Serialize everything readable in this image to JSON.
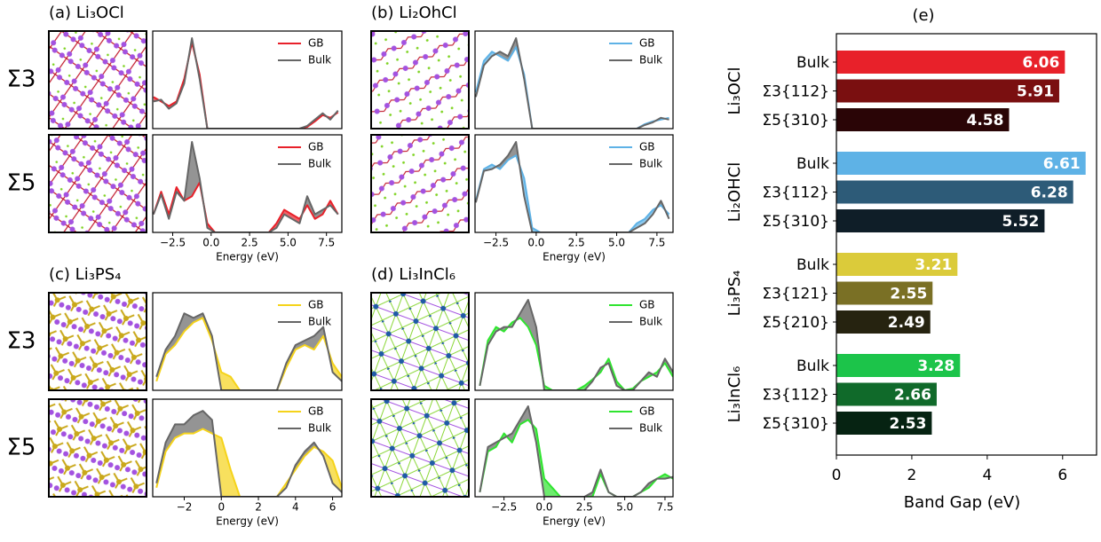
{
  "chart_data": [
    {
      "type": "line",
      "title": "(a) Li₃OCl",
      "row_label": "Σ3",
      "legend": "upper right",
      "xlim": [
        -3.8,
        8.5
      ],
      "ylim": [
        0,
        1
      ],
      "x": [
        -3.75,
        -3.25,
        -2.75,
        -2.25,
        -1.75,
        -1.25,
        -0.75,
        -0.25,
        0.25,
        0.75,
        1.25,
        1.75,
        2.25,
        2.75,
        3.25,
        3.75,
        4.25,
        4.75,
        5.25,
        5.75,
        6.25,
        6.75,
        7.25,
        7.75,
        8.25
      ],
      "series": [
        {
          "name": "GB",
          "color": "#e8212a",
          "values": [
            0.35,
            0.3,
            0.25,
            0.3,
            0.55,
            0.95,
            0.6,
            0,
            0,
            0,
            0,
            0,
            0,
            0,
            0,
            0,
            0,
            0,
            0,
            0,
            0.02,
            0.08,
            0.15,
            0.12,
            0.18
          ]
        },
        {
          "name": "Bulk",
          "color": "#666666",
          "values": [
            0.3,
            0.32,
            0.22,
            0.28,
            0.5,
            1.0,
            0.55,
            0,
            0,
            0,
            0,
            0,
            0,
            0,
            0,
            0,
            0,
            0,
            0,
            0,
            0.03,
            0.1,
            0.17,
            0.1,
            0.2
          ]
        }
      ]
    },
    {
      "type": "line",
      "row_label": "Σ5",
      "legend": "upper right",
      "xlabel": "Energy (eV)",
      "xlim": [
        -3.8,
        8.5
      ],
      "ylim": [
        0,
        1
      ],
      "xticks": [
        {
          "value": -2.5,
          "label": "−2.5"
        },
        {
          "value": 0,
          "label": "0.0"
        },
        2.5,
        {
          "value": 5,
          "label": "5.0"
        },
        7.5
      ],
      "x": [
        -3.75,
        -3.25,
        -2.75,
        -2.25,
        -1.75,
        -1.25,
        -0.75,
        -0.25,
        0.25,
        0.75,
        1.25,
        1.75,
        2.25,
        2.75,
        3.25,
        3.75,
        4.25,
        4.75,
        5.25,
        5.75,
        6.25,
        6.75,
        7.25,
        7.75,
        8.25
      ],
      "series": [
        {
          "name": "GB",
          "color": "#e8212a",
          "values": [
            0.2,
            0.45,
            0.2,
            0.5,
            0.35,
            0.4,
            0.55,
            0.1,
            0,
            0,
            0,
            0,
            0,
            0,
            0,
            0,
            0.1,
            0.25,
            0.2,
            0.15,
            0.3,
            0.15,
            0.2,
            0.35,
            0.2
          ]
        },
        {
          "name": "Bulk",
          "color": "#666666",
          "values": [
            0.2,
            0.42,
            0.15,
            0.45,
            0.35,
            1.0,
            0.6,
            0.05,
            0,
            0,
            0,
            0,
            0,
            0,
            0,
            0,
            0.05,
            0.2,
            0.15,
            0.1,
            0.4,
            0.2,
            0.25,
            0.3,
            0.2
          ]
        }
      ]
    },
    {
      "type": "line",
      "title": "(b) Li₂OhCl",
      "legend": "upper right",
      "xlim": [
        -3.8,
        8.5
      ],
      "ylim": [
        0,
        1
      ],
      "x": [
        -3.75,
        -3.25,
        -2.75,
        -2.25,
        -1.75,
        -1.25,
        -0.75,
        -0.25,
        0.25,
        0.75,
        1.25,
        1.75,
        2.25,
        2.75,
        3.25,
        3.75,
        4.25,
        4.75,
        5.25,
        5.75,
        6.25,
        6.75,
        7.25,
        7.75,
        8.25
      ],
      "series": [
        {
          "name": "GB",
          "color": "#5eb2e6",
          "values": [
            0.4,
            0.75,
            0.85,
            0.8,
            0.75,
            0.9,
            0.6,
            0,
            0,
            0,
            0,
            0,
            0,
            0,
            0,
            0,
            0,
            0,
            0,
            0,
            0,
            0.05,
            0.08,
            0.1,
            0.12
          ]
        },
        {
          "name": "Bulk",
          "color": "#666666",
          "values": [
            0.35,
            0.7,
            0.8,
            0.85,
            0.8,
            1.0,
            0.55,
            0,
            0,
            0,
            0,
            0,
            0,
            0,
            0,
            0,
            0,
            0,
            0,
            0,
            0,
            0.04,
            0.07,
            0.12,
            0.1
          ]
        }
      ]
    },
    {
      "type": "line",
      "legend": "upper right",
      "xlabel": "Energy (eV)",
      "xlim": [
        -3.8,
        8.5
      ],
      "ylim": [
        0,
        1
      ],
      "xticks": [
        {
          "value": -2.5,
          "label": "−2.5"
        },
        {
          "value": 0,
          "label": "0.0"
        },
        2.5,
        {
          "value": 5,
          "label": "5.0"
        },
        7.5
      ],
      "x": [
        -3.75,
        -3.25,
        -2.75,
        -2.25,
        -1.75,
        -1.25,
        -0.75,
        -0.25,
        0.25,
        0.75,
        1.25,
        1.75,
        2.25,
        2.75,
        3.25,
        3.75,
        4.25,
        4.75,
        5.25,
        5.75,
        6.25,
        6.75,
        7.25,
        7.75,
        8.25
      ],
      "series": [
        {
          "name": "GB",
          "color": "#5eb2e6",
          "values": [
            0.35,
            0.7,
            0.75,
            0.7,
            0.8,
            0.85,
            0.6,
            0.05,
            0,
            0,
            0,
            0,
            0,
            0,
            0,
            0,
            0,
            0,
            0,
            0,
            0.1,
            0.15,
            0.25,
            0.3,
            0.2
          ]
        },
        {
          "name": "Bulk",
          "color": "#666666",
          "values": [
            0.33,
            0.68,
            0.7,
            0.75,
            0.85,
            1.0,
            0.4,
            0,
            0,
            0,
            0,
            0,
            0,
            0,
            0,
            0,
            0,
            0,
            0,
            0,
            0.05,
            0.1,
            0.2,
            0.35,
            0.15
          ]
        }
      ]
    },
    {
      "type": "line",
      "title": "(c) Li₃PS₄",
      "row_label": "Σ3",
      "legend": "upper right",
      "xlim": [
        -3.7,
        6.5
      ],
      "ylim": [
        0,
        1
      ],
      "x": [
        -3.5,
        -3,
        -2.5,
        -2,
        -1.5,
        -1,
        -0.5,
        0,
        0.5,
        1,
        1.5,
        2,
        2.5,
        3,
        3.5,
        4,
        4.5,
        5,
        5.5,
        6,
        6.5
      ],
      "series": [
        {
          "name": "GB",
          "color": "#f5d31a",
          "values": [
            0.1,
            0.4,
            0.5,
            0.65,
            0.75,
            0.8,
            0.55,
            0.2,
            0.15,
            0,
            0,
            0,
            0,
            0,
            0.25,
            0.45,
            0.5,
            0.45,
            0.6,
            0.3,
            0.15
          ]
        },
        {
          "name": "Bulk",
          "color": "#666666",
          "values": [
            0.15,
            0.45,
            0.6,
            0.85,
            0.8,
            0.85,
            0.6,
            0,
            0,
            0,
            0,
            0,
            0,
            0,
            0.3,
            0.5,
            0.55,
            0.6,
            0.7,
            0.2,
            0.1
          ]
        }
      ]
    },
    {
      "type": "line",
      "row_label": "Σ5",
      "legend": "upper right",
      "xlabel": "Energy (eV)",
      "xlim": [
        -3.7,
        6.5
      ],
      "ylim": [
        0,
        1
      ],
      "xticks": [
        {
          "value": -2,
          "label": "−2"
        },
        0,
        2,
        4,
        6
      ],
      "x": [
        -3.5,
        -3,
        -2.5,
        -2,
        -1.5,
        -1,
        -0.5,
        0,
        0.5,
        1,
        1.5,
        2,
        2.5,
        3,
        3.5,
        4,
        4.5,
        5,
        5.5,
        6,
        6.5
      ],
      "series": [
        {
          "name": "GB",
          "color": "#f5d31a",
          "values": [
            0.1,
            0.5,
            0.65,
            0.7,
            0.7,
            0.75,
            0.7,
            0.65,
            0.3,
            0,
            0,
            0,
            0,
            0,
            0.15,
            0.3,
            0.45,
            0.55,
            0.5,
            0.4,
            0.1
          ]
        },
        {
          "name": "Bulk",
          "color": "#666666",
          "values": [
            0.15,
            0.6,
            0.8,
            0.8,
            0.9,
            0.95,
            0.85,
            0,
            0,
            0,
            0,
            0,
            0,
            0,
            0.1,
            0.35,
            0.5,
            0.6,
            0.45,
            0.15,
            0.05
          ]
        }
      ]
    },
    {
      "type": "line",
      "title": "(d) Li₃InCl₆",
      "legend": "upper right",
      "xlim": [
        -4.3,
        8
      ],
      "ylim": [
        0,
        1
      ],
      "x": [
        -4,
        -3.5,
        -3,
        -2.5,
        -2,
        -1.5,
        -1,
        -0.5,
        0,
        0.5,
        1,
        1.5,
        2,
        2.5,
        3,
        3.5,
        4,
        4.5,
        5,
        5.5,
        6,
        6.5,
        7,
        7.5,
        8
      ],
      "series": [
        {
          "name": "GB",
          "color": "#2fe42f",
          "values": [
            0.05,
            0.55,
            0.7,
            0.65,
            0.75,
            0.8,
            0.7,
            0.5,
            0.05,
            0,
            0,
            0,
            0,
            0.05,
            0.12,
            0.2,
            0.35,
            0.1,
            0,
            0.02,
            0.1,
            0.15,
            0.2,
            0.3,
            0.15
          ]
        },
        {
          "name": "Bulk",
          "color": "#666666",
          "values": [
            0.05,
            0.5,
            0.65,
            0.7,
            0.7,
            0.85,
            1.0,
            0.7,
            0,
            0,
            0,
            0,
            0,
            0,
            0.1,
            0.25,
            0.3,
            0.05,
            0,
            0,
            0.1,
            0.2,
            0.15,
            0.35,
            0.2
          ]
        }
      ]
    },
    {
      "type": "line",
      "legend": "upper right",
      "xlabel": "Energy (eV)",
      "xlim": [
        -4.3,
        8
      ],
      "ylim": [
        0,
        1
      ],
      "xticks": [
        {
          "value": -2.5,
          "label": "−2.5"
        },
        {
          "value": 0,
          "label": "0.0"
        },
        2.5,
        {
          "value": 5,
          "label": "5.0"
        },
        7.5
      ],
      "x": [
        -4,
        -3.5,
        -3,
        -2.5,
        -2,
        -1.5,
        -1,
        -0.5,
        0,
        0.5,
        1,
        1.5,
        2,
        2.5,
        3,
        3.5,
        4,
        4.5,
        5,
        5.5,
        6,
        6.5,
        7,
        7.5,
        8
      ],
      "series": [
        {
          "name": "GB",
          "color": "#2fe42f",
          "values": [
            0.05,
            0.5,
            0.55,
            0.7,
            0.6,
            0.8,
            0.85,
            0.75,
            0.2,
            0.1,
            0,
            0,
            0,
            0,
            0,
            0.25,
            0.05,
            0,
            0,
            0,
            0.05,
            0.1,
            0.2,
            0.25,
            0.2
          ]
        },
        {
          "name": "Bulk",
          "color": "#666666",
          "values": [
            0.05,
            0.55,
            0.6,
            0.65,
            0.7,
            0.85,
            1.0,
            0.6,
            0,
            0,
            0,
            0,
            0,
            0,
            0.05,
            0.3,
            0.05,
            0,
            0,
            0,
            0.05,
            0.15,
            0.2,
            0.2,
            0.22
          ]
        }
      ]
    },
    {
      "type": "barh",
      "title": "(e)",
      "xlabel": "Band Gap (eV)",
      "xlim": [
        0,
        6.9
      ],
      "xticks": [
        0,
        2,
        4,
        6
      ],
      "series": [
        {
          "name": "Li₃OCl",
          "categories": [
            "Bulk",
            "Σ3{112}",
            "Σ5{310}"
          ],
          "values": [
            6.06,
            5.91,
            4.58
          ],
          "colors": [
            "#e8212a",
            "#7a0f10",
            "#2a0506"
          ]
        },
        {
          "name": "Li₂OHCl",
          "categories": [
            "Bulk",
            "Σ3{112}",
            "Σ5{310}"
          ],
          "values": [
            6.61,
            6.28,
            5.52
          ],
          "colors": [
            "#5eb2e6",
            "#2d5b78",
            "#0f1e28"
          ]
        },
        {
          "name": "Li₃PS₄",
          "categories": [
            "Bulk",
            "Σ3{121}",
            "Σ5{210}"
          ],
          "values": [
            3.21,
            2.55,
            2.49
          ],
          "colors": [
            "#dbcb3a",
            "#7a7025",
            "#262310"
          ]
        },
        {
          "name": "Li₃InCl₆",
          "categories": [
            "Bulk",
            "Σ3{112}",
            "Σ5{310}"
          ],
          "values": [
            3.28,
            2.66,
            2.53
          ],
          "colors": [
            "#1cc44a",
            "#106a2a",
            "#062312"
          ]
        }
      ]
    }
  ]
}
